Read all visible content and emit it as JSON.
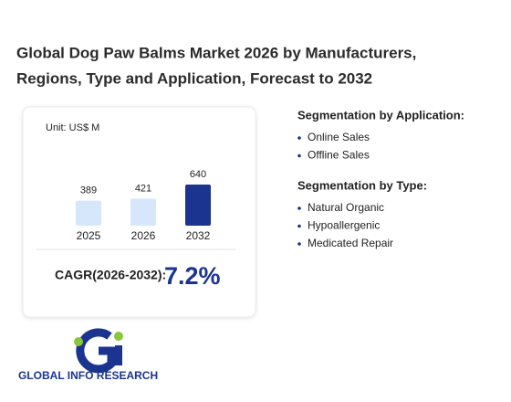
{
  "title_lines": [
    "Global Dog Paw Balms Market 2026 by Manufacturers,",
    "Regions, Type and Application, Forecast to 2032"
  ],
  "chart_data": {
    "type": "bar",
    "unit": "Unit: US$ M",
    "categories": [
      "2025",
      "2026",
      "2032"
    ],
    "values": [
      389,
      421,
      640
    ],
    "colors": [
      "#d7e7fb",
      "#d7e7fb",
      "#1b3490"
    ]
  },
  "cagr": {
    "label": "CAGR(2026-2032):",
    "value": "7.2%"
  },
  "segments": [
    {
      "heading": "Segmentation by Application:",
      "items": [
        "Online Sales",
        "Offline Sales"
      ]
    },
    {
      "heading": "Segmentation by Type:",
      "items": [
        "Natural Organic",
        "Hypoallergenic",
        "Medicated Repair"
      ]
    }
  ],
  "logo_text": "GLOBAL INFO RESEARCH"
}
